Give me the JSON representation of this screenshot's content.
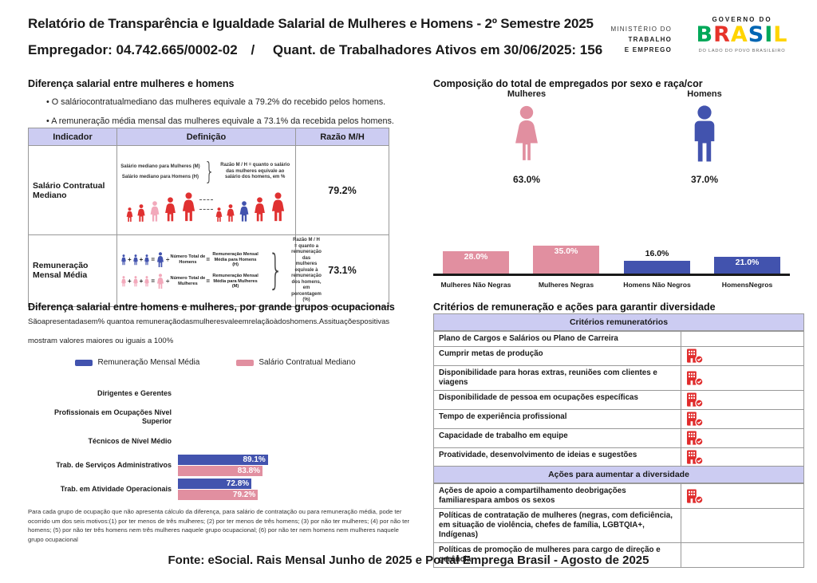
{
  "header": {
    "title": "Relatório de Transparência e Igualdade Salarial de Mulheres e Homens - 2º Semestre 2025",
    "employer_line": "Empregador: 04.742.665/0002-02",
    "separator": "/",
    "active_workers_line": "Quant. de Trabalhadores Ativos em 30/06/2025: 156",
    "ministry_lines": [
      "MINISTÉRIO DO",
      "TRABALHO",
      "E EMPREGO"
    ],
    "gov_label": "GOVERNO DO",
    "gov_brand": "BRASIL",
    "gov_tagline": "DO LADO DO POVO BRASILEIRO"
  },
  "salary_gap": {
    "title": "Diferença salarial entre mulheres e homens",
    "bullets": [
      "O saláriocontratualmediano das mulheres equivale a 79.2% do recebido pelos homens.",
      "A remuneração média mensal das mulheres equivale a 73.1% da recebida pelos homens."
    ],
    "table": {
      "col_indicator": "Indicador",
      "col_definition": "Definição",
      "col_ratio": "Razão M/H",
      "row1": {
        "indicator": "Salário Contratual Mediano",
        "def_line1": "Salário mediano para Mulheres (M)",
        "def_line2": "Salário mediano para Homens (H)",
        "def_note": "Razão M / H = quanto o salário das mulheres equivale ao salário dos homens, em %",
        "ratio": "79.2%"
      },
      "row2": {
        "indicator": "Remuneração Mensal Média",
        "men_divisor": "Número Total de Homens",
        "men_result": "Remuneração Mensal Média para Homens (H)",
        "women_divisor": "Número Total de Mulheres",
        "women_result": "Remuneração Mensal Média para Mulheres (M)",
        "def_note": "Razão M / H = quanto a remuneração das mulheres equivale à remuneração dos homens, em porcentagem (%)",
        "ratio": "73.1%"
      }
    }
  },
  "composition": {
    "title": "Composição do total de empregados por sexo e raça/cor",
    "female": {
      "label": "Mulheres",
      "value": "63.0%"
    },
    "male": {
      "label": "Homens",
      "value": "37.0%"
    }
  },
  "occupational": {
    "title": "Diferença salarial entre homens e mulheres, por grande grupos ocupacionais",
    "desc_line1": "Sãoapresentadasem% quantoa remuneraçãodasmulheresvaleemrelaçãoàdoshomens.Assituaçõespositivas",
    "desc_line2": "mostram valores maiores ou iguais a 100%",
    "footnote": "Para cada grupo de ocupação que não apresenta cálculo da diferença, para salário de contratação ou para remuneração média, pode ter ocorrido um dos seis motivos:(1) por ter menos de três mulheres; (2) por ter menos de três homens; (3) por não ter mulheres; (4) por não ter homens; (5) por não ter três homens nem três mulheres naquele grupo ocupacional; (6) por não ter nem homens nem mulheres naquele grupo ocupacional"
  },
  "criteria": {
    "title": "Critérios de remuneração e ações para garantir diversidade",
    "sections": [
      {
        "header": "Critérios remuneratórios",
        "rows": [
          {
            "label": "Plano de Cargos e Salários ou Plano de Carreira",
            "checked": false
          },
          {
            "label": "Cumprir metas de produção",
            "checked": true
          },
          {
            "label": "Disponibilidade para horas extras, reuniões com clientes e viagens",
            "checked": true
          },
          {
            "label": "Disponibilidade de pessoa em ocupações específicas",
            "checked": true
          },
          {
            "label": "Tempo de experiência profissional",
            "checked": true
          },
          {
            "label": "Capacidade de trabalho em equipe",
            "checked": true
          },
          {
            "label": "Proatividade, desenvolvimento de ideias e sugestões",
            "checked": true
          }
        ]
      },
      {
        "header": "Ações para aumentar a diversidade",
        "rows": [
          {
            "label": "Ações de apoio a compartilhamento deobrigações familiarespara ambos os sexos",
            "checked": true
          },
          {
            "label": "Políticas de contratação de mulheres (negras, com deficiência, em situação de violência, chefes de família, LGBTQIA+, Indígenas)",
            "checked": false
          },
          {
            "label": "Políticas de promoção de mulheres para cargo de direção e gerência",
            "checked": false
          }
        ]
      }
    ]
  },
  "footer": {
    "source": "Fonte: eSocial. Rais Mensal Junho de 2025 e Portal Emprega Brasil - Agosto de 2025"
  },
  "colors": {
    "pink": "#e18fa0",
    "light_pink": "#f2a9bb",
    "blue": "#4253ae",
    "red": "#e03131",
    "lavender": "#ccccf2",
    "icon_red": "#e02b2b",
    "brand_letters": [
      "#00a859",
      "#e6332a",
      "#ffd400",
      "#0066b3",
      "#00a859",
      "#ffd400"
    ]
  },
  "chart_data": [
    {
      "id": "composition-by-sex",
      "type": "pictogram",
      "title": "Composição do total de empregados por sexo e raça/cor",
      "categories": [
        "Mulheres",
        "Homens"
      ],
      "values": [
        63.0,
        37.0
      ],
      "labels": [
        "63.0%",
        "37.0%"
      ],
      "unit": "%"
    },
    {
      "id": "composition-by-race",
      "type": "bar",
      "categories": [
        "Mulheres Não Negras",
        "Mulheres Negras",
        "Homens Não Negros",
        "HomensNegros"
      ],
      "values": [
        28.0,
        35.0,
        16.0,
        21.0
      ],
      "labels": [
        "28.0%",
        "35.0%",
        "16.0%",
        "21.0%"
      ],
      "bar_colors": [
        "#e18fa0",
        "#e18fa0",
        "#4253ae",
        "#4253ae"
      ],
      "label_inside": [
        true,
        true,
        false,
        true
      ],
      "unit": "%",
      "ylim": [
        0,
        40
      ],
      "grid": false,
      "legend": false
    },
    {
      "id": "gap-by-occupational-group",
      "type": "bar",
      "orientation": "horizontal",
      "categories": [
        "Dirigentes e Gerentes",
        "Profissionais em Ocupações Nível Superior",
        "Técnicos de Nível Médio",
        "Trab. de Serviços Administrativos",
        "Trab. em Atividade Operacionais"
      ],
      "series": [
        {
          "name": "Remuneração Mensal Média",
          "color": "#4253ae",
          "values": [
            null,
            null,
            null,
            89.1,
            72.8
          ],
          "labels": [
            "",
            "",
            "",
            "89.1%",
            "72.8%"
          ]
        },
        {
          "name": "Salário Contratual Mediano",
          "color": "#e18fa0",
          "values": [
            null,
            null,
            null,
            83.8,
            79.2
          ],
          "labels": [
            "",
            "",
            "",
            "83.8%",
            "79.2%"
          ]
        }
      ],
      "unit": "%",
      "xlim": [
        0,
        100
      ],
      "legend_position": "top",
      "grid": false
    }
  ]
}
